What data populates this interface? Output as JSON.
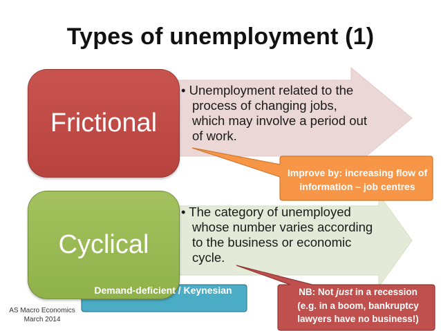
{
  "title": "Types of unemployment (1)",
  "rows": [
    {
      "heading": "Frictional",
      "bullet_marker": "•",
      "bullet": "Unemployment related to the process of changing jobs, which may involve a period out of work.",
      "box_color": "#c0504d",
      "arrow_color": "#ecd7d7"
    },
    {
      "heading": "Cyclical",
      "bullet_marker": "•",
      "bullet": "The category of unemployed whose number varies according to the business or economic cycle.",
      "box_color": "#9bbb59",
      "arrow_color": "#e3ead7"
    }
  ],
  "callouts": {
    "frictional_improve": {
      "text": "Improve by: increasing flow of information – job centres",
      "color": "#f79646"
    },
    "cyclical_type": {
      "text": "Demand-deficient / Keynesian",
      "color": "#4bacc6"
    },
    "cyclical_note": {
      "text": "NB: Not just in a recession (e.g. in a boom, bankruptcy lawyers have no business!)",
      "line1_pre": "NB: Not ",
      "line1_em": "just",
      "line1_post": " in a recession",
      "line2": "(e.g. in a boom, bankruptcy",
      "line3": "lawyers have no business!)",
      "color": "#c0504d"
    }
  },
  "footer": {
    "line1": "AS Macro Economics",
    "line2": "March 2014"
  }
}
